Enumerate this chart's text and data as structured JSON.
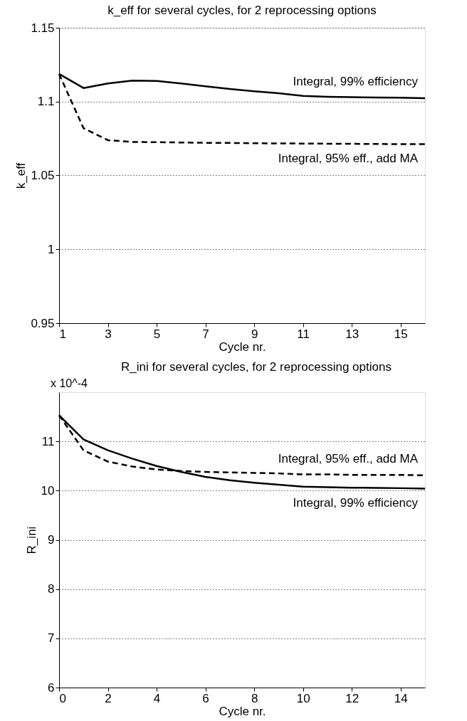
{
  "chart_data": [
    {
      "type": "line",
      "title": "k_eff for several cycles, for 2 reprocessing options",
      "xlabel": "Cycle nr.",
      "ylabel": "k_eff",
      "x": [
        1,
        2,
        3,
        4,
        5,
        6,
        7,
        8,
        9,
        10,
        11,
        12,
        13,
        14,
        15,
        16
      ],
      "xlim": [
        1,
        16
      ],
      "xticks": [
        1,
        3,
        5,
        7,
        9,
        11,
        13,
        15
      ],
      "ylim": [
        0.95,
        1.15
      ],
      "yticks": [
        0.95,
        1,
        1.05,
        1.1,
        1.15
      ],
      "grid": "y",
      "legend": false,
      "marker": "none",
      "series": [
        {
          "name": "Integral, 99% efficiency",
          "color": "#000000",
          "line_style": "solid",
          "values": [
            1.1187,
            1.1092,
            1.1123,
            1.1142,
            1.114,
            1.1123,
            1.1104,
            1.1085,
            1.107,
            1.1057,
            1.1038,
            1.1033,
            1.103,
            1.1028,
            1.1026,
            1.1023
          ]
        },
        {
          "name": "Integral, 95% eff., add MA",
          "color": "#000000",
          "line_style": "dashed",
          "values": [
            1.1187,
            1.082,
            1.0739,
            1.0727,
            1.0725,
            1.0723,
            1.0721,
            1.072,
            1.0718,
            1.0717,
            1.0716,
            1.0715,
            1.0714,
            1.0713,
            1.0712,
            1.0712
          ]
        }
      ]
    },
    {
      "type": "line",
      "title": "R_ini for several cycles, for 2 reprocessing options",
      "xlabel": "Cycle nr.",
      "ylabel": "R_ini",
      "annotations": [
        "x 10^-4"
      ],
      "x": [
        0,
        1,
        2,
        3,
        4,
        5,
        6,
        7,
        8,
        9,
        10,
        11,
        12,
        13,
        14,
        15
      ],
      "xlim": [
        0,
        15
      ],
      "xticks": [
        0,
        2,
        4,
        6,
        8,
        10,
        12,
        14
      ],
      "ylim": [
        6,
        12
      ],
      "yticks": [
        6,
        7,
        8,
        9,
        10,
        11
      ],
      "grid": "y",
      "legend": false,
      "marker": "none",
      "series": [
        {
          "name": "Integral, 99% efficiency",
          "color": "#000000",
          "line_style": "solid",
          "values": [
            11.53,
            11.04,
            10.82,
            10.65,
            10.5,
            10.38,
            10.28,
            10.21,
            10.16,
            10.12,
            10.08,
            10.07,
            10.06,
            10.055,
            10.05,
            10.04
          ]
        },
        {
          "name": "Integral, 95% eff., add MA",
          "color": "#000000",
          "line_style": "dashed",
          "values": [
            11.53,
            10.82,
            10.59,
            10.49,
            10.43,
            10.4,
            10.38,
            10.37,
            10.36,
            10.35,
            10.33,
            10.33,
            10.32,
            10.32,
            10.32,
            10.31
          ]
        }
      ]
    }
  ]
}
